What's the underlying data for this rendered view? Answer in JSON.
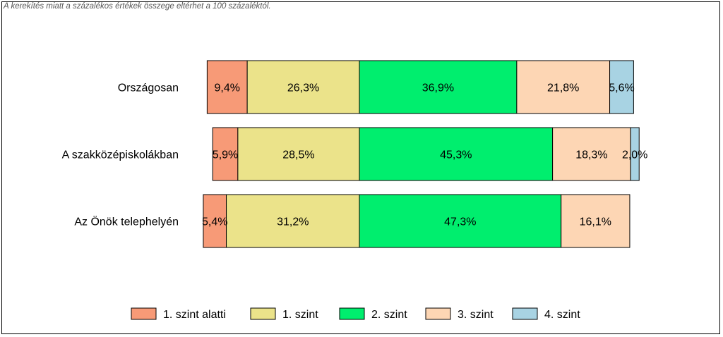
{
  "note": "A kerekítés miatt a  százalékos értékek összege eltérhet a 100 százaléktól.",
  "chart_data": {
    "type": "bar",
    "orientation": "horizontal",
    "stacked": true,
    "diverging": true,
    "categories": [
      "Országosan",
      "A szakközépiskolákban",
      "Az Önök telephelyén"
    ],
    "series": [
      {
        "name": "1. szint alatti",
        "color": "#f79a77",
        "values": [
          9.4,
          5.9,
          5.4
        ],
        "labels": [
          "9,4%",
          "5,9%",
          "5,4%"
        ]
      },
      {
        "name": "1. szint",
        "color": "#ebe38a",
        "values": [
          26.3,
          28.5,
          31.2
        ],
        "labels": [
          "26,3%",
          "28,5%",
          "31,2%"
        ]
      },
      {
        "name": "2. szint",
        "color": "#00ee6e",
        "values": [
          36.9,
          45.3,
          47.3
        ],
        "labels": [
          "36,9%",
          "45,3%",
          "47,3%"
        ]
      },
      {
        "name": "3. szint",
        "color": "#fdd6b4",
        "values": [
          21.8,
          18.3,
          16.1
        ],
        "labels": [
          "21,8%",
          "18,3%",
          "16,1%"
        ]
      },
      {
        "name": "4. szint",
        "color": "#a8d3e3",
        "values": [
          5.6,
          2.0,
          0
        ],
        "labels": [
          "5,6%",
          "2,0%",
          ""
        ]
      }
    ],
    "legend_position": "bottom",
    "grid": false
  }
}
